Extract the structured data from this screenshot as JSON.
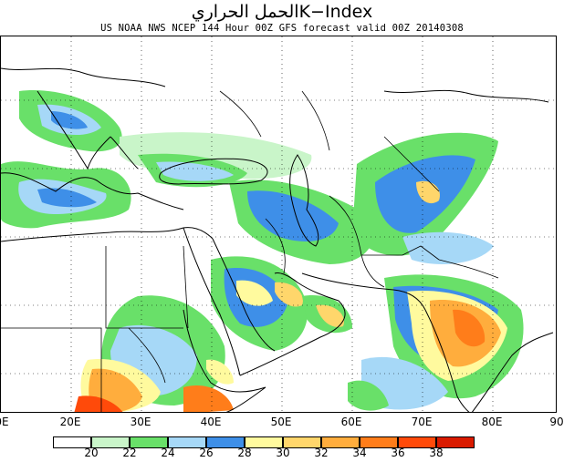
{
  "title": {
    "arabic": "الحمل الحراري",
    "main": "K−Index"
  },
  "subtitle": "US NOAA NWS NCEP 144 Hour 00Z GFS forecast valid 00Z 20140308",
  "map": {
    "lon_labels": [
      "0E",
      "20E",
      "30E",
      "40E",
      "50E",
      "60E",
      "70E",
      "80E",
      "90"
    ],
    "line_color": "#000000"
  },
  "legend": {
    "colors": [
      "#ffffff",
      "#c9f5c9",
      "#69e069",
      "#a6d8f7",
      "#3e8fe8",
      "#fffa9e",
      "#ffd66b",
      "#ffad3d",
      "#ff7d1a",
      "#ff4a0a",
      "#d91a00"
    ],
    "labels": [
      "20",
      "22",
      "24",
      "26",
      "28",
      "30",
      "32",
      "34",
      "36",
      "38"
    ]
  },
  "chart_data": {
    "type": "heatmap",
    "title": "K−Index",
    "variable": "K-Index",
    "levels": [
      20,
      22,
      24,
      26,
      28,
      30,
      32,
      34,
      36,
      38
    ],
    "x_ticks": [
      "0E",
      "20E",
      "30E",
      "40E",
      "50E",
      "60E",
      "70E",
      "80E",
      "90"
    ]
  }
}
